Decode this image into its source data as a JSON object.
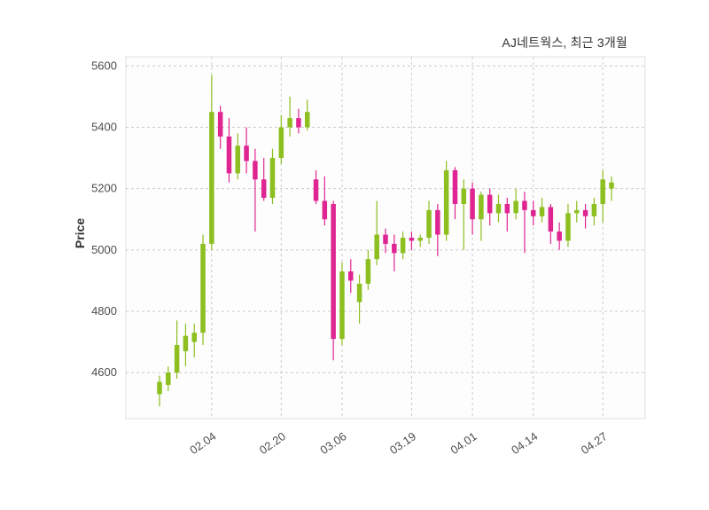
{
  "chart_data": {
    "type": "candlestick",
    "title": "AJ네트웍스, 최근 3개월",
    "ylabel": "Price",
    "xlabel": "",
    "ylim": [
      4450,
      5630
    ],
    "yticks": [
      4600,
      4800,
      5000,
      5200,
      5400,
      5600
    ],
    "xticks": [
      {
        "index": 6,
        "label": "02.04"
      },
      {
        "index": 14,
        "label": "02.20"
      },
      {
        "index": 21,
        "label": "03.06"
      },
      {
        "index": 29,
        "label": "03.19"
      },
      {
        "index": 36,
        "label": "04.01"
      },
      {
        "index": 43,
        "label": "04.14"
      },
      {
        "index": 51,
        "label": "04.27"
      }
    ],
    "grid": "dashed, horizontal and vertical at ticks",
    "legend": "none",
    "colors": {
      "up_candle": "#8cbf1f",
      "down_candle": "#df2591",
      "grid_line": "#cccccc",
      "axis_text": "#4d4d4d",
      "title_text": "#333333",
      "plot_background": "#fdfdfd",
      "plot_border": "#e0e0e0"
    },
    "candle_columns": [
      "open",
      "high",
      "low",
      "close"
    ],
    "candles": [
      [
        4530,
        4590,
        4490,
        4570
      ],
      [
        4560,
        4620,
        4540,
        4600
      ],
      [
        4600,
        4770,
        4580,
        4690
      ],
      [
        4670,
        4760,
        4620,
        4720
      ],
      [
        4700,
        4760,
        4650,
        4730
      ],
      [
        4730,
        5050,
        4690,
        5020
      ],
      [
        5020,
        5570,
        5000,
        5450
      ],
      [
        5450,
        5470,
        5330,
        5370
      ],
      [
        5370,
        5430,
        5220,
        5250
      ],
      [
        5250,
        5380,
        5230,
        5340
      ],
      [
        5340,
        5400,
        5250,
        5290
      ],
      [
        5290,
        5330,
        5060,
        5230
      ],
      [
        5230,
        5300,
        5160,
        5170
      ],
      [
        5170,
        5330,
        5150,
        5300
      ],
      [
        5300,
        5440,
        5280,
        5400
      ],
      [
        5400,
        5500,
        5370,
        5430
      ],
      [
        5430,
        5460,
        5380,
        5400
      ],
      [
        5400,
        5490,
        5390,
        5450
      ],
      [
        5230,
        5260,
        5150,
        5160
      ],
      [
        5160,
        5240,
        5080,
        5100
      ],
      [
        5150,
        5160,
        4640,
        4710
      ],
      [
        4710,
        4960,
        4690,
        4930
      ],
      [
        4930,
        4970,
        4860,
        4900
      ],
      [
        4830,
        4920,
        4760,
        4890
      ],
      [
        4890,
        5000,
        4870,
        4970
      ],
      [
        4970,
        5160,
        4950,
        5050
      ],
      [
        5050,
        5070,
        4990,
        5020
      ],
      [
        5020,
        5050,
        4930,
        4990
      ],
      [
        4990,
        5060,
        4970,
        5040
      ],
      [
        5040,
        5060,
        5000,
        5030
      ],
      [
        5030,
        5050,
        5010,
        5040
      ],
      [
        5040,
        5160,
        5020,
        5130
      ],
      [
        5130,
        5150,
        4980,
        5050
      ],
      [
        5050,
        5290,
        5030,
        5260
      ],
      [
        5260,
        5270,
        5100,
        5150
      ],
      [
        5150,
        5230,
        5000,
        5200
      ],
      [
        5200,
        5220,
        5050,
        5100
      ],
      [
        5100,
        5190,
        5030,
        5180
      ],
      [
        5180,
        5200,
        5080,
        5120
      ],
      [
        5120,
        5180,
        5090,
        5150
      ],
      [
        5150,
        5170,
        5060,
        5120
      ],
      [
        5120,
        5200,
        5100,
        5160
      ],
      [
        5160,
        5190,
        4990,
        5130
      ],
      [
        5130,
        5160,
        5080,
        5110
      ],
      [
        5110,
        5170,
        5090,
        5140
      ],
      [
        5140,
        5150,
        5020,
        5060
      ],
      [
        5060,
        5090,
        5000,
        5030
      ],
      [
        5030,
        5150,
        5010,
        5120
      ],
      [
        5120,
        5160,
        5090,
        5130
      ],
      [
        5130,
        5150,
        5070,
        5110
      ],
      [
        5110,
        5170,
        5080,
        5150
      ],
      [
        5150,
        5260,
        5090,
        5230
      ],
      [
        5200,
        5240,
        5160,
        5220
      ]
    ]
  }
}
